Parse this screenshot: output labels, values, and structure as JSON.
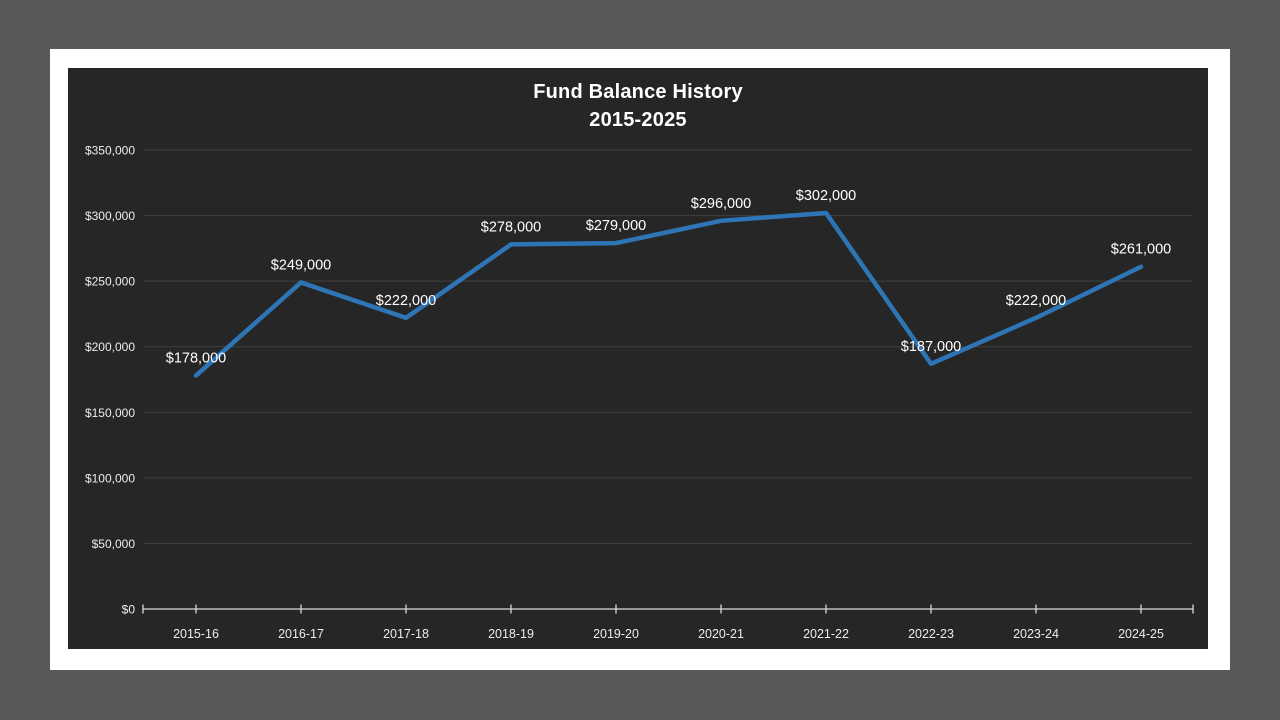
{
  "slide": {
    "background_color": "#595959",
    "canvas_color": "#ffffff",
    "chart_background": "#262626"
  },
  "chart": {
    "title_line1": "Fund Balance History",
    "title_line2": "2015-2025"
  },
  "chart_data": {
    "type": "line",
    "title": "Fund Balance History 2015-2025",
    "categories": [
      "2015-16",
      "2016-17",
      "2017-18",
      "2018-19",
      "2019-20",
      "2020-21",
      "2021-22",
      "2022-23",
      "2023-24",
      "2024-25"
    ],
    "values": [
      178000,
      249000,
      222000,
      278000,
      279000,
      296000,
      302000,
      187000,
      222000,
      261000
    ],
    "data_labels": [
      "$178,000",
      "$249,000",
      "$222,000",
      "$278,000",
      "$279,000",
      "$296,000",
      "$302,000",
      "$187,000",
      "$222,000",
      "$261,000"
    ],
    "y_ticks": [
      0,
      50000,
      100000,
      150000,
      200000,
      250000,
      300000,
      350000
    ],
    "y_tick_labels": [
      "$0",
      "$50,000",
      "$100,000",
      "$150,000",
      "$200,000",
      "$250,000",
      "$300,000",
      "$350,000"
    ],
    "ylim": [
      0,
      350000
    ],
    "xlabel": "",
    "ylabel": "",
    "grid": true,
    "legend": "none",
    "line_color": "#2E75B6",
    "gridline_color": "#404040",
    "axis_color": "#D9D9D9",
    "tick_label_color": "#ECECEC",
    "data_label_color": "#FFFFFF"
  }
}
